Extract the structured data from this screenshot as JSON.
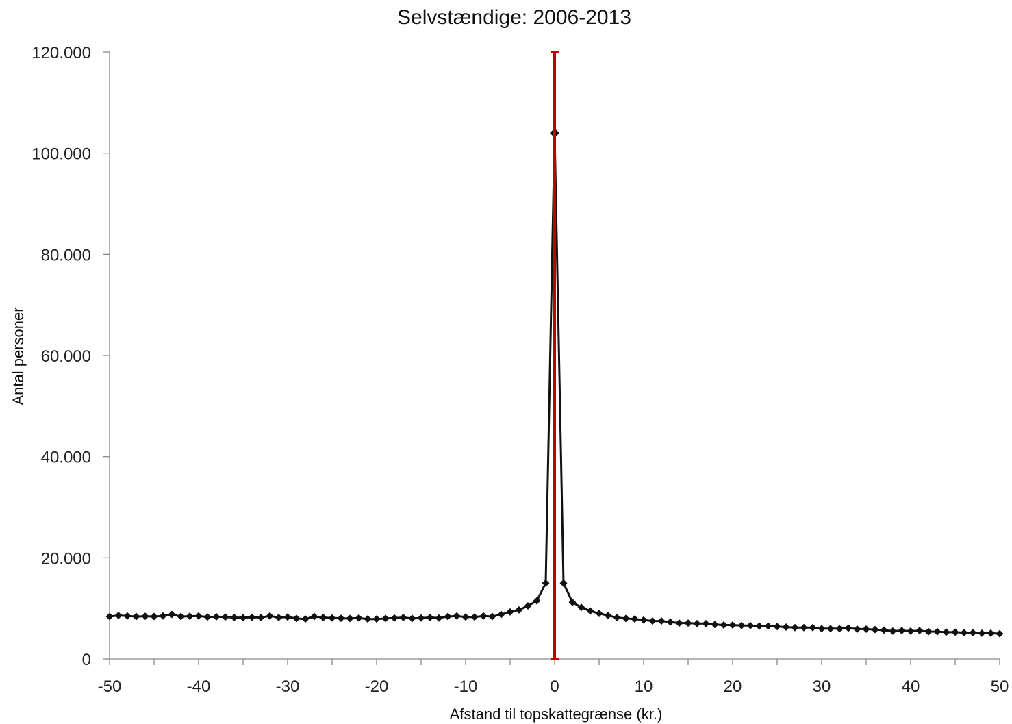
{
  "chart_data": {
    "type": "line",
    "title": "Selvstændige: 2006-2013",
    "xlabel": "Afstand til topskattegrænse (kr.)",
    "ylabel": "Antal personer",
    "xlim": [
      -50,
      50
    ],
    "ylim": [
      0,
      120000
    ],
    "x_ticks": [
      -50,
      -40,
      -30,
      -20,
      -10,
      0,
      10,
      20,
      30,
      40,
      50
    ],
    "x_tick_labels": [
      "-50",
      "-40",
      "-30",
      "-20",
      "-10",
      "0",
      "10",
      "20",
      "30",
      "40",
      "50"
    ],
    "y_ticks": [
      0,
      20000,
      40000,
      60000,
      80000,
      100000,
      120000
    ],
    "y_tick_labels": [
      "0",
      "20.000",
      "40.000",
      "60.000",
      "80.000",
      "100.000",
      "120.000"
    ],
    "grid": false,
    "legend": "none",
    "reference_line": {
      "x": 0,
      "y_range": [
        0,
        120000
      ],
      "color": "#c00000"
    },
    "series": [
      {
        "color": "#111111",
        "marker": "diamond",
        "x": [
          -50,
          -49,
          -48,
          -47,
          -46,
          -45,
          -44,
          -43,
          -42,
          -41,
          -40,
          -39,
          -38,
          -37,
          -36,
          -35,
          -34,
          -33,
          -32,
          -31,
          -30,
          -29,
          -28,
          -27,
          -26,
          -25,
          -24,
          -23,
          -22,
          -21,
          -20,
          -19,
          -18,
          -17,
          -16,
          -15,
          -14,
          -13,
          -12,
          -11,
          -10,
          -9,
          -8,
          -7,
          -6,
          -5,
          -4,
          -3,
          -2,
          -1,
          0,
          1,
          2,
          3,
          4,
          5,
          6,
          7,
          8,
          9,
          10,
          11,
          12,
          13,
          14,
          15,
          16,
          17,
          18,
          19,
          20,
          21,
          22,
          23,
          24,
          25,
          26,
          27,
          28,
          29,
          30,
          31,
          32,
          33,
          34,
          35,
          36,
          37,
          38,
          39,
          40,
          41,
          42,
          43,
          44,
          45,
          46,
          47,
          48,
          49,
          50
        ],
        "y": [
          8400,
          8600,
          8500,
          8400,
          8450,
          8400,
          8500,
          8800,
          8400,
          8450,
          8500,
          8300,
          8350,
          8300,
          8200,
          8150,
          8250,
          8200,
          8500,
          8200,
          8300,
          8000,
          7900,
          8400,
          8200,
          8100,
          8050,
          8000,
          8100,
          7900,
          7900,
          8000,
          8100,
          8200,
          8000,
          8100,
          8200,
          8100,
          8400,
          8500,
          8300,
          8300,
          8500,
          8400,
          8800,
          9300,
          9700,
          10500,
          11500,
          15000,
          104000,
          15000,
          11200,
          10200,
          9500,
          9000,
          8600,
          8200,
          8000,
          7900,
          7700,
          7500,
          7500,
          7300,
          7100,
          7100,
          7000,
          7000,
          6800,
          6700,
          6700,
          6600,
          6600,
          6500,
          6500,
          6400,
          6300,
          6200,
          6200,
          6200,
          6000,
          6000,
          6000,
          6100,
          5900,
          5900,
          5800,
          5700,
          5500,
          5600,
          5500,
          5600,
          5400,
          5400,
          5300,
          5300,
          5200,
          5200,
          5100,
          5100,
          5000
        ]
      }
    ]
  }
}
